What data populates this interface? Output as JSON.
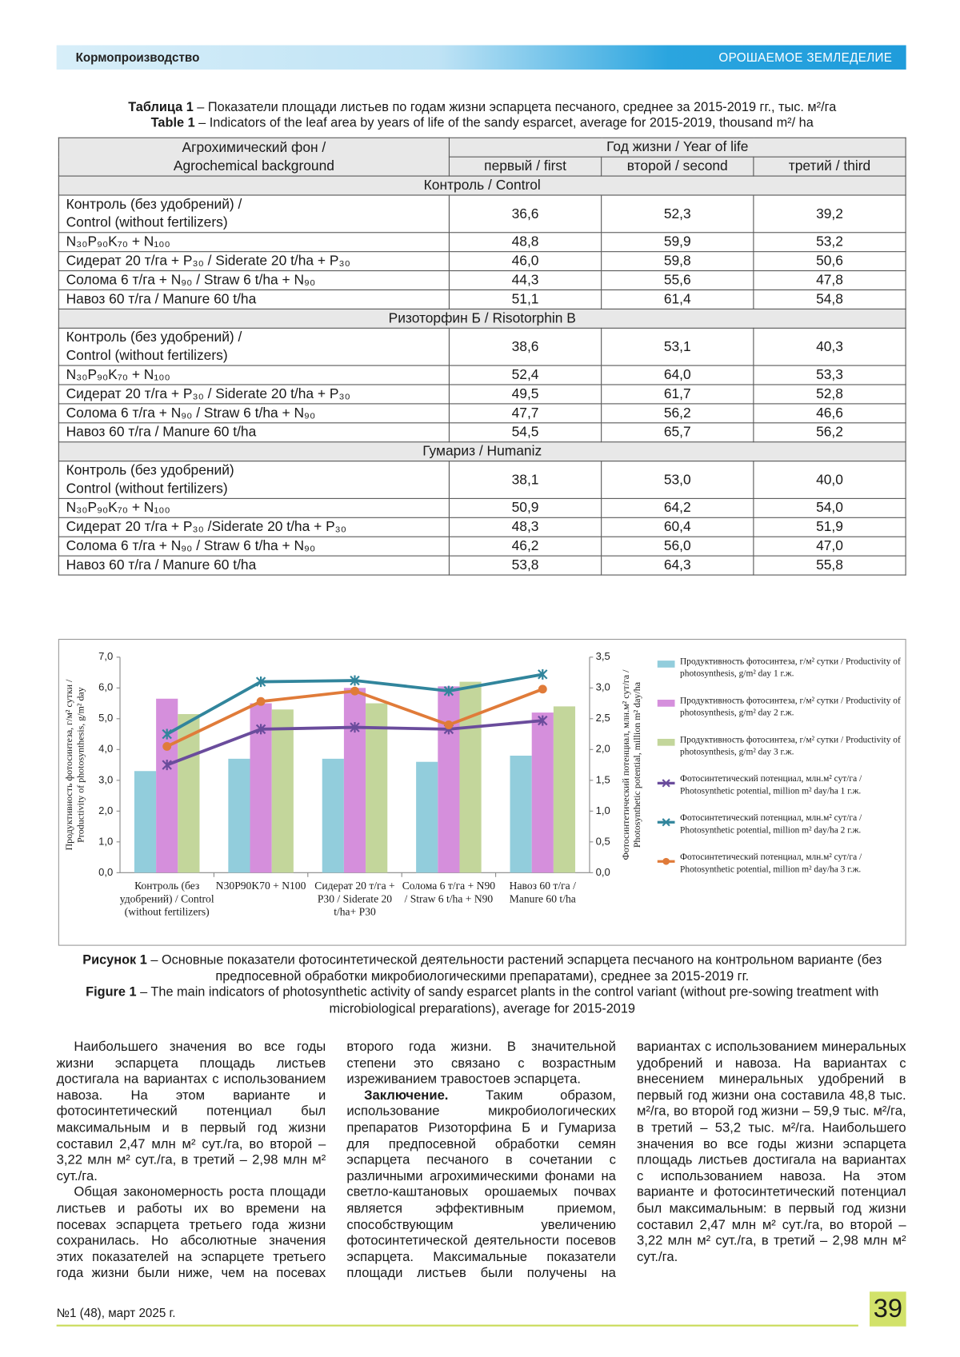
{
  "header": {
    "left": "Кормопроизводство",
    "right": "ОРОШАЕМОЕ ЗЕМЛЕДЕЛИЕ"
  },
  "table": {
    "caption_ru": {
      "lead": "Таблица 1",
      "text": "– Показатели площади листьев по годам жизни эспарцета песчаного, среднее за 2015-2019 гг., тыс. м²/га"
    },
    "caption_en": {
      "lead": "Table 1",
      "text": "– Indicators of the leaf area by years of life of the sandy esparcet, average for 2015-2019, thousand m²/ ha"
    },
    "head": {
      "first": [
        "Агрохимический фон /",
        "Agrochemical background"
      ],
      "group": "Год жизни / Year of life",
      "years": [
        "первый / first",
        "второй / second",
        "третий / third"
      ]
    },
    "sections": [
      {
        "title": "Контроль / Control",
        "rows": [
          [
            [
              "Контроль (без удобрений) /",
              "Control (without fertilizers)"
            ],
            "36,6",
            "52,3",
            "39,2"
          ],
          [
            [
              "N₃₀P₉₀K₇₀ + N₁₀₀"
            ],
            "48,8",
            "59,9",
            "53,2"
          ],
          [
            [
              "Сидерат 20 т/га + P₃₀ / Siderate 20 t/ha + P₃₀"
            ],
            "46,0",
            "59,8",
            "50,6"
          ],
          [
            [
              "Солома 6 т/га + N₉₀ / Straw 6 t/ha + N₉₀"
            ],
            "44,3",
            "55,6",
            "47,8"
          ],
          [
            [
              "Навоз 60 т/га / Manure 60 t/ha"
            ],
            "51,1",
            "61,4",
            "54,8"
          ]
        ]
      },
      {
        "title": "Ризоторфин Б / Risotorphin B",
        "rows": [
          [
            [
              "Контроль (без удобрений) /",
              "Control (without fertilizers)"
            ],
            "38,6",
            "53,1",
            "40,3"
          ],
          [
            [
              "N₃₀P₉₀K₇₀ + N₁₀₀"
            ],
            "52,4",
            "64,0",
            "53,3"
          ],
          [
            [
              "Сидерат 20 т/га + P₃₀ / Siderate 20 t/ha + P₃₀"
            ],
            "49,5",
            "61,7",
            "52,8"
          ],
          [
            [
              "Солома 6 т/га + N₉₀ / Straw 6 t/ha + N₉₀"
            ],
            "47,7",
            "56,2",
            "46,6"
          ],
          [
            [
              "Навоз 60 т/га / Manure 60 t/ha"
            ],
            "54,5",
            "65,7",
            "56,2"
          ]
        ]
      },
      {
        "title": "Гумариз / Humaniz",
        "rows": [
          [
            [
              "Контроль (без удобрений)",
              "Control (without fertilizers)"
            ],
            "38,1",
            "53,0",
            "40,0"
          ],
          [
            [
              "N₃₀P₉₀K₇₀ + N₁₀₀"
            ],
            "50,9",
            "64,2",
            "54,0"
          ],
          [
            [
              "Сидерат 20 т/га + P₃₀ /Siderate 20 t/ha + P₃₀"
            ],
            "48,3",
            "60,4",
            "51,9"
          ],
          [
            [
              "Солома 6 т/га + N₉₀ / Straw 6 t/ha + N₉₀"
            ],
            "46,2",
            "56,0",
            "47,0"
          ],
          [
            [
              "Навоз 60 т/га / Manure 60 t/ha"
            ],
            "53,8",
            "64,3",
            "55,8"
          ]
        ]
      }
    ]
  },
  "chart_data": {
    "type": "bar",
    "categories": [
      "Контроль (без удобрений) / Control (without fertilizers)",
      "N30P90K70 + N100",
      "Сидерат 20 т/га + P30 / Siderate 20 t/ha+ P30",
      "Солома 6 т/га + N90 / Straw 6 t/ha + N90",
      "Навоз 60 т/га / Manure 60 t/ha"
    ],
    "ylabel": "Продуктивность фотосинтеза, г/м² сутки / Productivity of photosynthesis, g/m² day",
    "y2label": "Фотосинтетический потенциал, млн.м² сут/га / Photosynthetic potential, million m² day/ha",
    "ylim": [
      0,
      7
    ],
    "yticks": [
      {
        "value": 0,
        "label": "0,0"
      },
      {
        "value": 1,
        "label": "1,0"
      },
      {
        "value": 2,
        "label": "2,0"
      },
      {
        "value": 3,
        "label": "3,0"
      },
      {
        "value": 4,
        "label": "4,0"
      },
      {
        "value": 5,
        "label": "5,0"
      },
      {
        "value": 6,
        "label": "6,0"
      },
      {
        "value": 7,
        "label": "7,0"
      }
    ],
    "y2lim": [
      0,
      3.5
    ],
    "y2ticks": [
      {
        "value": 0,
        "label": "0,0"
      },
      {
        "value": 0.5,
        "label": "0,5"
      },
      {
        "value": 1,
        "label": "1,0"
      },
      {
        "value": 1.5,
        "label": "1,5"
      },
      {
        "value": 2,
        "label": "2,0"
      },
      {
        "value": 2.5,
        "label": "2,5"
      },
      {
        "value": 3,
        "label": "3,0"
      },
      {
        "value": 3.5,
        "label": "3,5"
      }
    ],
    "grid": false,
    "legend": "right",
    "series": [
      {
        "name": "Продуктивность фотосинтеза, г/м² сутки / Productivity of photosynthesis, g/m² day 1 г.ж.",
        "type": "bar",
        "color": "#92cddc",
        "values": [
          3.3,
          3.7,
          3.7,
          3.6,
          3.8
        ]
      },
      {
        "name": "Продуктивность фотосинтеза, г/м² сутки / Productivity of photosynthesis, g/m² day 2 г.ж.",
        "type": "bar",
        "color": "#d58fdc",
        "values": [
          5.65,
          5.5,
          6.0,
          6.05,
          5.2
        ]
      },
      {
        "name": "Продуктивность фотосинтеза, г/м² сутки / Productivity of photosynthesis, g/m² day 3 г.ж.",
        "type": "bar",
        "color": "#c3d69b",
        "values": [
          5.15,
          5.3,
          5.5,
          6.2,
          5.4
        ]
      },
      {
        "name": "Фотосинтетический потенциал, млн.м² сут/га / Photosynthetic potential, million m² day/ha 1 г.ж.",
        "type": "line",
        "axis": "y2",
        "marker": "x",
        "color": "#6a4c9c",
        "values": [
          1.75,
          2.33,
          2.36,
          2.33,
          2.47
        ]
      },
      {
        "name": "Фотосинтетический потенциал, млн.м² сут/га / Photosynthetic potential, million m² day/ha 2 г.ж.",
        "type": "line",
        "axis": "y2",
        "marker": "x",
        "color": "#31859c",
        "values": [
          2.25,
          3.1,
          3.12,
          2.95,
          3.22
        ]
      },
      {
        "name": "Фотосинтетический потенциал, млн.м² сут/га / Photosynthetic potential, million m² day/ha 3 г.ж.",
        "type": "line",
        "axis": "y2",
        "marker": "circle",
        "color": "#e07b39",
        "values": [
          2.05,
          2.78,
          2.95,
          2.4,
          2.98
        ]
      }
    ]
  },
  "figure_caption": {
    "ru": {
      "lead": "Рисунок 1",
      "text": "– Основные показатели фотосинтетической деятельности растений эспарцета песчаного на контрольном варианте (без предпосевной обработки микробиологическими препаратами), среднее за 2015-2019 гг."
    },
    "en": {
      "lead": "Figure 1",
      "text": "– The main indicators of photosynthetic activity of sandy esparcet plants in the control variant (without pre-sowing treatment with microbiological preparations), average for 2015-2019"
    }
  },
  "body": {
    "paragraphs": [
      {
        "text": "Наибольшего значения во все годы жизни эспарцета площадь листьев достигала на вариантах с использованием навоза. На этом варианте и фотосинтетический потенциал был максимальным и в первый год жизни составил 2,47 млн м² сут./га, во второй – 3,22 млн м² сут./га, в третий – 2,98 млн м² сут./га."
      },
      {
        "text": "Общая закономерность роста площади листьев и работы их во времени на посевах эспарцета третьего года жизни сохранилась. Но абсолютные значения этих показателей на эспарцете третьего года жизни были ниже, чем на посевах второго года жизни. В значительной степени это связано с возрастным изреживанием травостоев эспарцета."
      },
      {
        "lead": "Заключение.",
        "text": "Таким образом, использование микробиологических препаратов Ризоторфина Б и Гумариза для предпосевной обработки семян эспарцета песчаного в сочетании с различными агрохимическими фонами на светло-каштановых орошаемых почвах является эффективным приемом, способствующим увеличению фотосинтетической деятельности посевов эспарцета. Максимальные показатели площади листьев были получены на вариантах с использованием минеральных удобрений и навоза. На вариантах с внесением минеральных удобрений в первый год жизни она составила 48,8 тыс. м²/га, во второй год жизни – 59,9 тыс. м²/га, в третий – 53,2 тыс. м²/га. Наибольшего значения во все годы жизни эспарцета площадь листьев достигала на вариантах с использованием навоза. На этом варианте и фотосинтетический потенциал был максимальным: в первый год жизни составил 2,47 млн м² сут./га, во второй – 3,22 млн м² сут./га, в третий – 2,98 млн м² сут./га."
      }
    ]
  },
  "footer": {
    "issue": "№1 (48), март 2025 г.",
    "page": "39"
  }
}
